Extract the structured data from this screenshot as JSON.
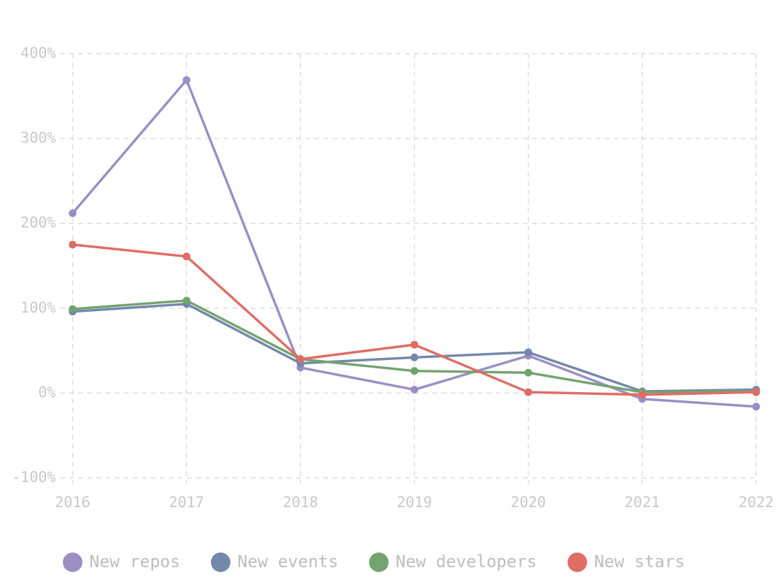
{
  "chart_data": {
    "type": "line",
    "categories": [
      "2016",
      "2017",
      "2018",
      "2019",
      "2020",
      "2021",
      "2022"
    ],
    "series": [
      {
        "name": "New repos",
        "color": "#9b8ec4",
        "values": [
          212,
          369,
          30,
          4,
          44,
          -7,
          -16
        ]
      },
      {
        "name": "New events",
        "color": "#7388ab",
        "values": [
          96,
          105,
          35,
          42,
          48,
          2,
          4
        ]
      },
      {
        "name": "New developers",
        "color": "#73a46f",
        "values": [
          99,
          109,
          40,
          26,
          24,
          1,
          2
        ]
      },
      {
        "name": "New stars",
        "color": "#e06c66",
        "values": [
          175,
          161,
          40,
          57,
          1,
          -2,
          1
        ]
      }
    ],
    "ylim": [
      -100,
      400
    ],
    "yticks": [
      {
        "value": -100,
        "label": "-100%"
      },
      {
        "value": 0,
        "label": "0%"
      },
      {
        "value": 100,
        "label": "100%"
      },
      {
        "value": 200,
        "label": "200%"
      },
      {
        "value": 300,
        "label": "300%"
      },
      {
        "value": 400,
        "label": "400%"
      }
    ],
    "grid": true
  }
}
